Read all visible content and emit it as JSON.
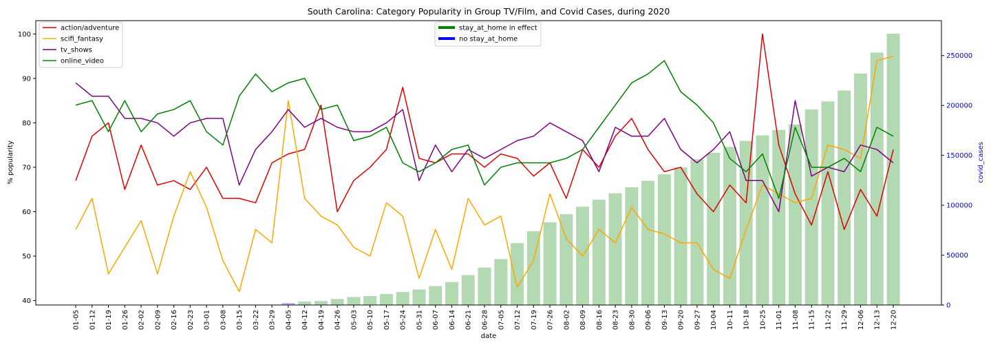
{
  "chart_data": {
    "type": "line",
    "title": "South Carolina: Category Popularity in Group TV/Film, and Covid Cases, during 2020",
    "xlabel": "date",
    "ylabel": "% popularity",
    "ylabel_right": "covid_cases",
    "ylim": [
      39,
      103
    ],
    "ylim_right": [
      0,
      285000
    ],
    "yticks": [
      40,
      50,
      60,
      70,
      80,
      90,
      100
    ],
    "yticks_right": [
      0,
      50000,
      100000,
      150000,
      200000,
      250000
    ],
    "categories": [
      "01-05",
      "01-12",
      "01-19",
      "01-26",
      "02-02",
      "02-09",
      "02-16",
      "02-23",
      "03-01",
      "03-08",
      "03-15",
      "03-22",
      "03-29",
      "04-05",
      "04-12",
      "04-19",
      "04-26",
      "05-03",
      "05-10",
      "05-17",
      "05-24",
      "05-31",
      "06-07",
      "06-14",
      "06-21",
      "06-28",
      "07-05",
      "07-12",
      "07-19",
      "07-26",
      "08-02",
      "08-09",
      "08-16",
      "08-23",
      "08-30",
      "09-06",
      "09-13",
      "09-20",
      "09-27",
      "10-04",
      "10-11",
      "10-18",
      "10-25",
      "11-01",
      "11-08",
      "11-15",
      "11-22",
      "11-29",
      "12-06",
      "12-13",
      "12-20"
    ],
    "series": [
      {
        "name": "action/adventure",
        "color": "#e00000",
        "values": [
          67,
          77,
          80,
          65,
          75,
          66,
          67,
          65,
          70,
          63,
          63,
          62,
          71,
          73,
          74,
          84,
          60,
          67,
          70,
          74,
          88,
          72,
          71,
          73,
          73,
          70,
          73,
          72,
          68,
          71,
          63,
          74,
          70,
          77,
          81,
          74,
          69,
          70,
          64,
          60,
          66,
          62,
          100,
          75,
          64,
          57,
          69,
          56,
          65,
          59,
          74
        ]
      },
      {
        "name": "scifi_fantasy",
        "color": "#ffa500",
        "values": [
          56,
          63,
          46,
          52,
          58,
          46,
          59,
          69,
          61,
          49,
          42,
          56,
          53,
          85,
          63,
          59,
          57,
          52,
          50,
          62,
          59,
          45,
          56,
          47,
          63,
          57,
          59,
          43,
          49,
          64,
          54,
          50,
          56,
          53,
          61,
          56,
          55,
          53,
          53,
          47,
          45,
          56,
          66,
          64,
          62,
          63,
          75,
          74,
          72,
          94,
          95
        ]
      },
      {
        "name": "tv_shows",
        "color": "#800080",
        "values": [
          89,
          86,
          86,
          81,
          81,
          80,
          77,
          80,
          81,
          81,
          66,
          74,
          78,
          83,
          79,
          81,
          79,
          78,
          78,
          80,
          83,
          67,
          75,
          69,
          74,
          72,
          74,
          76,
          77,
          80,
          78,
          76,
          69,
          79,
          77,
          77,
          81,
          74,
          71,
          74,
          78,
          67,
          67,
          60,
          85,
          68,
          70,
          69,
          75,
          74,
          71
        ]
      },
      {
        "name": "online_video",
        "color": "#008000",
        "values": [
          84,
          85,
          78,
          85,
          78,
          82,
          83,
          85,
          78,
          75,
          86,
          91,
          87,
          89,
          90,
          83,
          84,
          76,
          77,
          79,
          71,
          69,
          71,
          74,
          75,
          66,
          70,
          71,
          71,
          71,
          72,
          74,
          79,
          84,
          89,
          91,
          94,
          87,
          84,
          80,
          72,
          69,
          73,
          63,
          79,
          70,
          70,
          72,
          69,
          79,
          77
        ]
      }
    ],
    "bars": {
      "name": "covid_cases",
      "axis": "right",
      "values": [
        0,
        0,
        0,
        0,
        0,
        0,
        0,
        0,
        0,
        0,
        0,
        0,
        400,
        2000,
        3500,
        4000,
        6000,
        8000,
        9000,
        11000,
        13000,
        15500,
        19000,
        23000,
        30000,
        37500,
        46000,
        62000,
        74000,
        83000,
        91000,
        98500,
        105500,
        112000,
        118000,
        124500,
        131000,
        138000,
        146000,
        152500,
        158500,
        164500,
        170000,
        175500,
        181000,
        196000,
        204000,
        215000,
        232000,
        253000,
        272000
      ],
      "colors": {
        "stay_at_home": "#008000",
        "no_stay_at_home": "#0000ff"
      },
      "stay_at_home_in_effect": [
        false,
        false,
        false,
        false,
        false,
        false,
        false,
        false,
        false,
        false,
        false,
        false,
        false,
        false,
        true,
        true,
        true,
        true,
        true,
        true,
        true,
        true,
        true,
        true,
        true,
        true,
        true,
        true,
        true,
        true,
        true,
        true,
        true,
        true,
        true,
        true,
        true,
        true,
        true,
        true,
        true,
        true,
        true,
        true,
        true,
        true,
        true,
        true,
        true,
        true,
        true
      ]
    },
    "legend_left": {
      "placement": "top-left",
      "items": [
        "action/adventure",
        "scifi_fantasy",
        "tv_shows",
        "online_video"
      ]
    },
    "legend_center": {
      "placement": "top-center",
      "items": [
        {
          "label": "stay_at_home in effect",
          "color": "#008000"
        },
        {
          "label": "no stay_at_home",
          "color": "#0000ff"
        }
      ]
    },
    "right_axis_color": "#0000cc",
    "grid": false
  }
}
